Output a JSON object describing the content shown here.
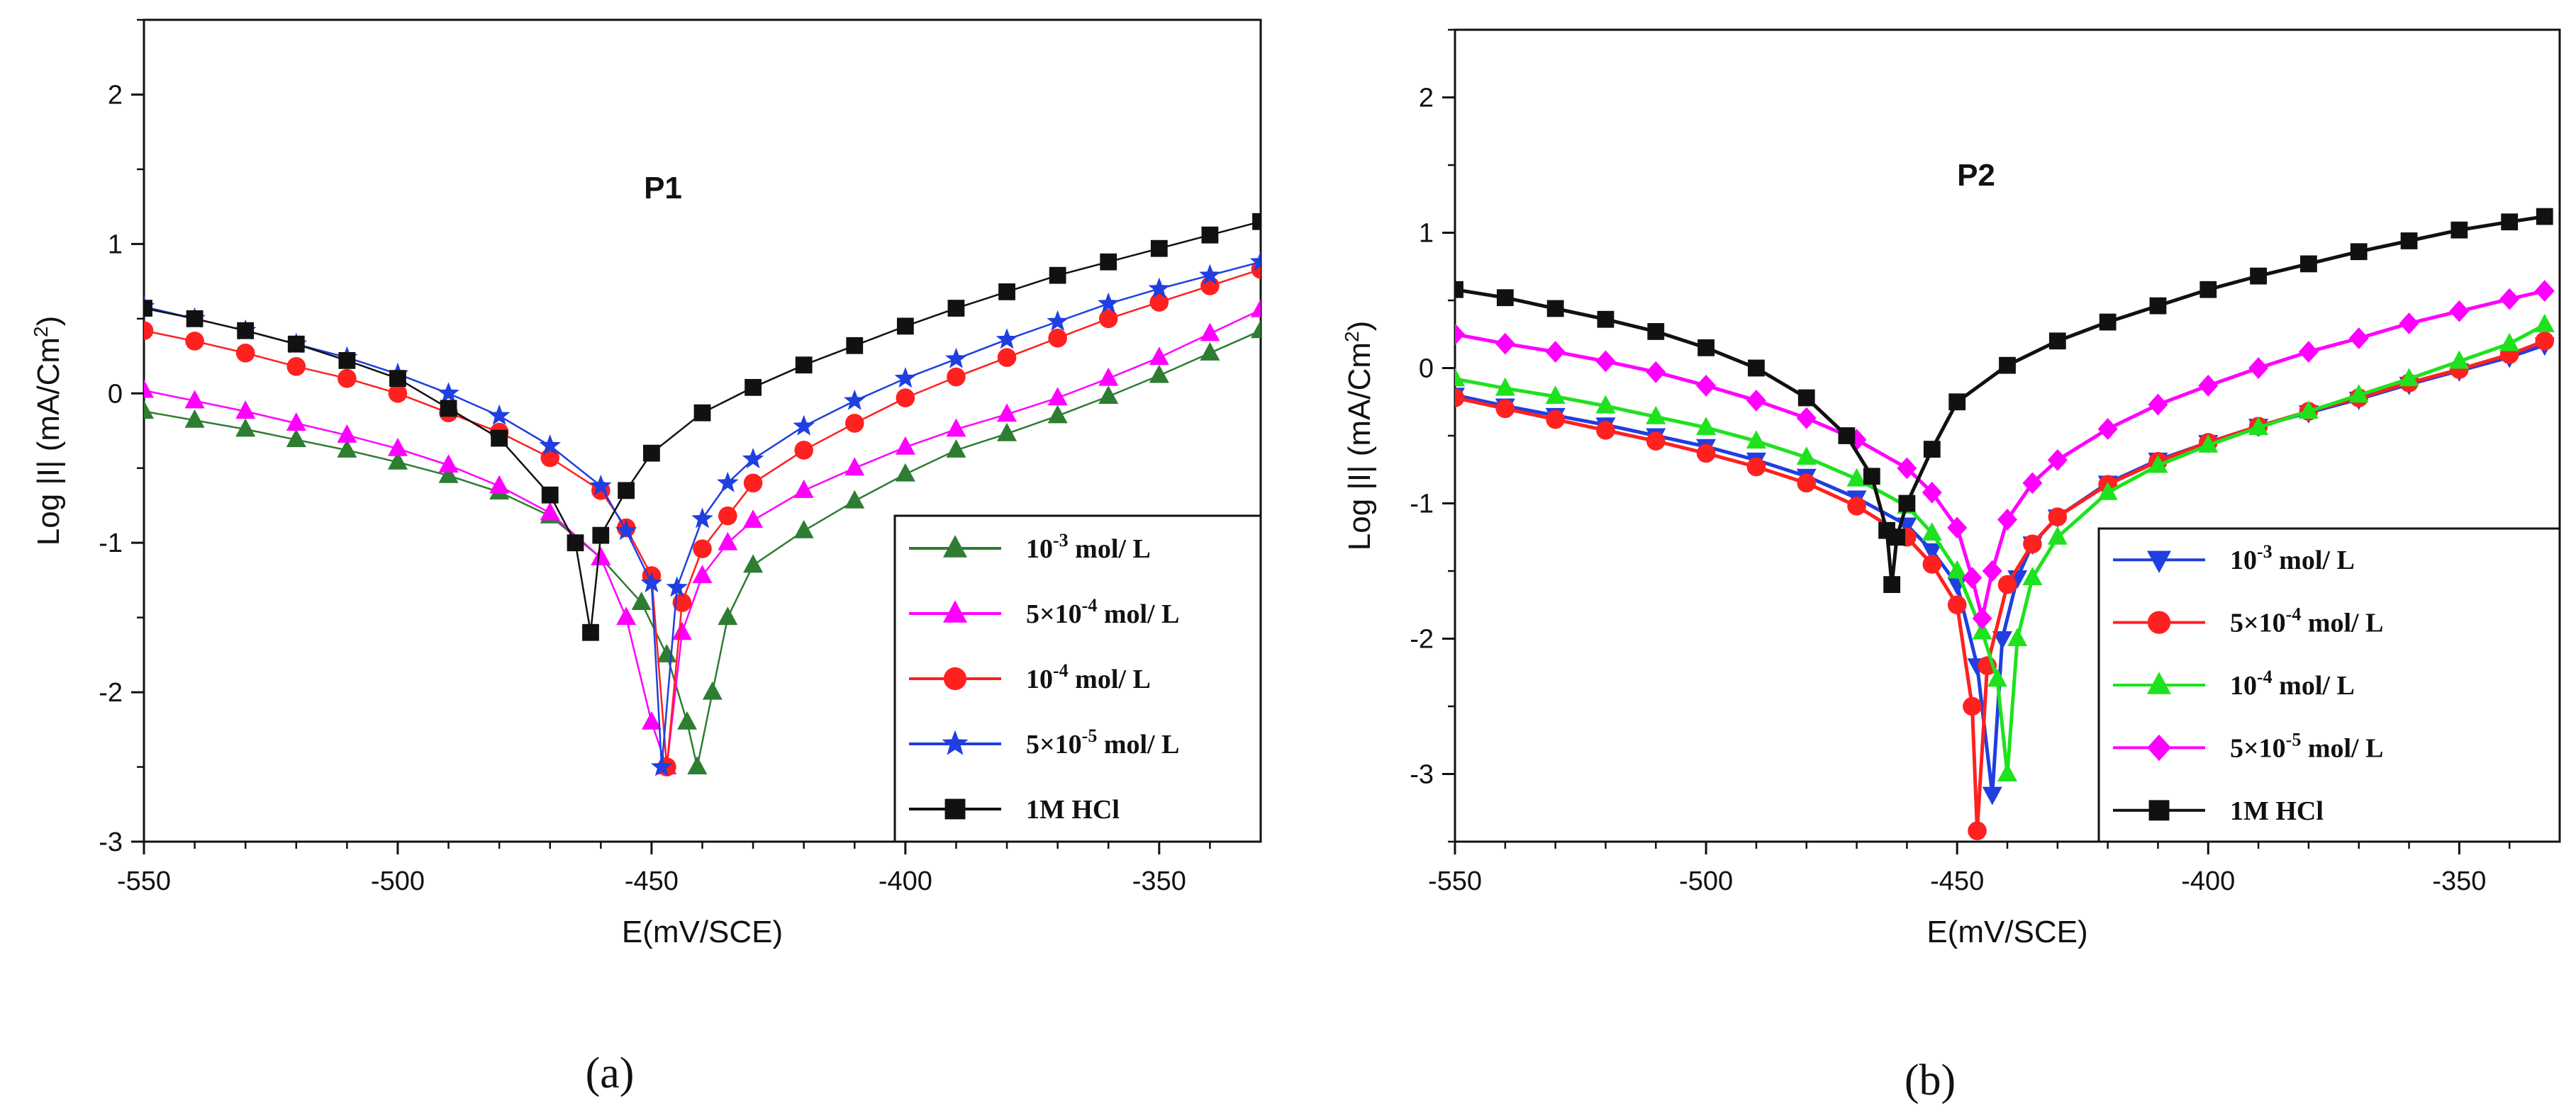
{
  "chart_data": [
    {
      "type": "line",
      "panel_label": "(a)",
      "title": "P1",
      "xlabel": "E(mV/SCE)",
      "ylabel": "Log |I| (mA/Cm",
      "ylabel_sup": "2",
      "ylabel_end": ")",
      "xlim": [
        -550,
        -330
      ],
      "ylim": [
        -3,
        2.5
      ],
      "xticks": [
        -550,
        -500,
        -450,
        -400,
        -350
      ],
      "yticks": [
        -3,
        -2,
        -1,
        0,
        1,
        2
      ],
      "legend_position": "lower-right",
      "series": [
        {
          "name": "10-3 mol/ L",
          "label_base": "10",
          "label_sup": "-3",
          "label_tail": " mol/ L",
          "color": "#2e7d32",
          "marker": "triangle-up",
          "x": [
            -550,
            -540,
            -530,
            -520,
            -510,
            -500,
            -490,
            -480,
            -470,
            -460,
            -452,
            -447,
            -443,
            -441,
            -438,
            -435,
            -430,
            -420,
            -410,
            -400,
            -390,
            -380,
            -370,
            -360,
            -350,
            -340,
            -330
          ],
          "y": [
            -0.12,
            -0.18,
            -0.24,
            -0.31,
            -0.38,
            -0.46,
            -0.55,
            -0.66,
            -0.82,
            -1.1,
            -1.4,
            -1.75,
            -2.2,
            -2.5,
            -2.0,
            -1.5,
            -1.15,
            -0.92,
            -0.72,
            -0.54,
            -0.38,
            -0.27,
            -0.15,
            -0.02,
            0.12,
            0.27,
            0.42
          ]
        },
        {
          "name": "5×10-4 mol/ L",
          "label_base": "5×10",
          "label_sup": "-4",
          "label_tail": " mol/ L",
          "color": "#ff00ff",
          "marker": "triangle-up",
          "x": [
            -550,
            -540,
            -530,
            -520,
            -510,
            -500,
            -490,
            -480,
            -470,
            -460,
            -455,
            -450,
            -447,
            -444,
            -440,
            -435,
            -430,
            -420,
            -410,
            -400,
            -390,
            -380,
            -370,
            -360,
            -350,
            -340,
            -330
          ],
          "y": [
            0.02,
            -0.05,
            -0.12,
            -0.2,
            -0.28,
            -0.37,
            -0.48,
            -0.62,
            -0.8,
            -1.1,
            -1.5,
            -2.2,
            -2.5,
            -1.6,
            -1.22,
            -1.0,
            -0.85,
            -0.65,
            -0.5,
            -0.36,
            -0.24,
            -0.14,
            -0.03,
            0.1,
            0.24,
            0.4,
            0.56
          ]
        },
        {
          "name": "10-4 mol/ L",
          "label_base": "10",
          "label_sup": "-4",
          "label_tail": " mol/ L",
          "color": "#ff2020",
          "marker": "circle",
          "x": [
            -550,
            -540,
            -530,
            -520,
            -510,
            -500,
            -490,
            -480,
            -470,
            -460,
            -455,
            -450,
            -447,
            -444,
            -440,
            -435,
            -430,
            -420,
            -410,
            -400,
            -390,
            -380,
            -370,
            -360,
            -350,
            -340,
            -330
          ],
          "y": [
            0.42,
            0.35,
            0.27,
            0.18,
            0.1,
            0.0,
            -0.13,
            -0.26,
            -0.43,
            -0.65,
            -0.9,
            -1.22,
            -2.5,
            -1.4,
            -1.04,
            -0.82,
            -0.6,
            -0.38,
            -0.2,
            -0.03,
            0.11,
            0.24,
            0.37,
            0.5,
            0.61,
            0.72,
            0.83
          ]
        },
        {
          "name": "5×10-5 mol/ L",
          "label_base": "5×10",
          "label_sup": "-5",
          "label_tail": " mol/ L",
          "color": "#1f3fe0",
          "marker": "star",
          "x": [
            -550,
            -540,
            -530,
            -520,
            -510,
            -500,
            -490,
            -480,
            -470,
            -460,
            -455,
            -450,
            -448,
            -445,
            -440,
            -435,
            -430,
            -420,
            -410,
            -400,
            -390,
            -380,
            -370,
            -360,
            -350,
            -340,
            -330
          ],
          "y": [
            0.58,
            0.5,
            0.42,
            0.33,
            0.24,
            0.13,
            0.0,
            -0.15,
            -0.35,
            -0.62,
            -0.92,
            -1.27,
            -2.5,
            -1.3,
            -0.84,
            -0.6,
            -0.44,
            -0.22,
            -0.05,
            0.1,
            0.23,
            0.36,
            0.48,
            0.6,
            0.7,
            0.79,
            0.88
          ]
        },
        {
          "name": "1M HCl",
          "label_base": "1M HCl",
          "label_sup": "",
          "label_tail": "",
          "color": "#111111",
          "marker": "square",
          "x": [
            -550,
            -540,
            -530,
            -520,
            -510,
            -500,
            -490,
            -480,
            -470,
            -465,
            -462,
            -460,
            -455,
            -450,
            -440,
            -430,
            -420,
            -410,
            -400,
            -390,
            -380,
            -370,
            -360,
            -350,
            -340,
            -330
          ],
          "y": [
            0.57,
            0.5,
            0.42,
            0.33,
            0.22,
            0.1,
            -0.1,
            -0.3,
            -0.68,
            -1.0,
            -1.6,
            -0.95,
            -0.65,
            -0.4,
            -0.13,
            0.04,
            0.19,
            0.32,
            0.45,
            0.57,
            0.68,
            0.79,
            0.88,
            0.97,
            1.06,
            1.15
          ]
        }
      ]
    },
    {
      "type": "line",
      "panel_label": "(b)",
      "title": "P2",
      "xlabel": "E(mV/SCE)",
      "ylabel": "Log |I| (mA/Cm",
      "ylabel_sup": "2",
      "ylabel_end": ")",
      "xlim": [
        -550,
        -330
      ],
      "ylim": [
        -3.5,
        2.5
      ],
      "xticks": [
        -550,
        -500,
        -450,
        -400,
        -350
      ],
      "yticks": [
        -3,
        -2,
        -1,
        0,
        1,
        2
      ],
      "legend_position": "lower-right",
      "series": [
        {
          "name": "10-3 mol/ L",
          "label_base": "10",
          "label_sup": "-3",
          "label_tail": " mol/ L",
          "color": "#1f3fe0",
          "marker": "triangle-down",
          "x": [
            -550,
            -540,
            -530,
            -520,
            -510,
            -500,
            -490,
            -480,
            -470,
            -460,
            -455,
            -450,
            -446,
            -443,
            -441,
            -438,
            -435,
            -430,
            -420,
            -410,
            -400,
            -390,
            -380,
            -370,
            -360,
            -350,
            -340,
            -333
          ],
          "y": [
            -0.2,
            -0.28,
            -0.35,
            -0.42,
            -0.5,
            -0.58,
            -0.68,
            -0.8,
            -0.96,
            -1.16,
            -1.35,
            -1.6,
            -2.2,
            -3.15,
            -2.0,
            -1.55,
            -1.3,
            -1.1,
            -0.85,
            -0.68,
            -0.55,
            -0.43,
            -0.33,
            -0.23,
            -0.12,
            -0.02,
            0.08,
            0.17
          ]
        },
        {
          "name": "5×10-4 mol/ L",
          "label_base": "5×10",
          "label_sup": "-4",
          "label_tail": " mol/ L",
          "color": "#ff2020",
          "marker": "circle",
          "x": [
            -550,
            -540,
            -530,
            -520,
            -510,
            -500,
            -490,
            -480,
            -470,
            -460,
            -455,
            -450,
            -447,
            -446,
            -444,
            -440,
            -435,
            -430,
            -420,
            -410,
            -400,
            -390,
            -380,
            -370,
            -360,
            -350,
            -340,
            -333
          ],
          "y": [
            -0.22,
            -0.3,
            -0.38,
            -0.46,
            -0.54,
            -0.63,
            -0.73,
            -0.85,
            -1.02,
            -1.25,
            -1.45,
            -1.75,
            -2.5,
            -3.42,
            -2.2,
            -1.6,
            -1.3,
            -1.1,
            -0.86,
            -0.69,
            -0.55,
            -0.43,
            -0.32,
            -0.22,
            -0.11,
            -0.01,
            0.1,
            0.2
          ]
        },
        {
          "name": "10-4 mol/ L",
          "label_base": "10",
          "label_sup": "-4",
          "label_tail": " mol/ L",
          "color": "#1ee21e",
          "marker": "triangle-up",
          "x": [
            -550,
            -540,
            -530,
            -520,
            -510,
            -500,
            -490,
            -480,
            -470,
            -460,
            -455,
            -450,
            -445,
            -442,
            -440,
            -438,
            -435,
            -430,
            -420,
            -410,
            -400,
            -390,
            -380,
            -370,
            -360,
            -350,
            -340,
            -333
          ],
          "y": [
            -0.08,
            -0.15,
            -0.21,
            -0.28,
            -0.36,
            -0.44,
            -0.54,
            -0.66,
            -0.82,
            -1.02,
            -1.22,
            -1.5,
            -1.95,
            -2.3,
            -3.0,
            -2.0,
            -1.55,
            -1.25,
            -0.92,
            -0.72,
            -0.57,
            -0.44,
            -0.32,
            -0.2,
            -0.08,
            0.05,
            0.18,
            0.32
          ]
        },
        {
          "name": "5×10-5 mol/ L",
          "label_base": "5×10",
          "label_sup": "-5",
          "label_tail": " mol/ L",
          "color": "#ff00ff",
          "marker": "diamond",
          "x": [
            -550,
            -540,
            -530,
            -520,
            -510,
            -500,
            -490,
            -480,
            -470,
            -460,
            -455,
            -450,
            -447,
            -445,
            -443,
            -440,
            -435,
            -430,
            -420,
            -410,
            -400,
            -390,
            -380,
            -370,
            -360,
            -350,
            -340,
            -333
          ],
          "y": [
            0.25,
            0.18,
            0.12,
            0.05,
            -0.03,
            -0.13,
            -0.24,
            -0.37,
            -0.53,
            -0.74,
            -0.92,
            -1.18,
            -1.55,
            -1.85,
            -1.5,
            -1.12,
            -0.85,
            -0.68,
            -0.45,
            -0.27,
            -0.13,
            0.0,
            0.12,
            0.22,
            0.33,
            0.42,
            0.51,
            0.57
          ]
        },
        {
          "name": "1M HCl",
          "label_base": "1M HCl",
          "label_sup": "",
          "label_tail": "",
          "color": "#111111",
          "marker": "square",
          "x": [
            -550,
            -540,
            -530,
            -520,
            -510,
            -500,
            -490,
            -480,
            -472,
            -467,
            -464,
            -463,
            -462,
            -460,
            -455,
            -450,
            -440,
            -430,
            -420,
            -410,
            -400,
            -390,
            -380,
            -370,
            -360,
            -350,
            -340,
            -333
          ],
          "y": [
            0.58,
            0.52,
            0.44,
            0.36,
            0.27,
            0.15,
            0.0,
            -0.22,
            -0.5,
            -0.8,
            -1.2,
            -1.6,
            -1.25,
            -1.0,
            -0.6,
            -0.25,
            0.02,
            0.2,
            0.34,
            0.46,
            0.58,
            0.68,
            0.77,
            0.86,
            0.94,
            1.02,
            1.08,
            1.12
          ]
        }
      ]
    }
  ]
}
